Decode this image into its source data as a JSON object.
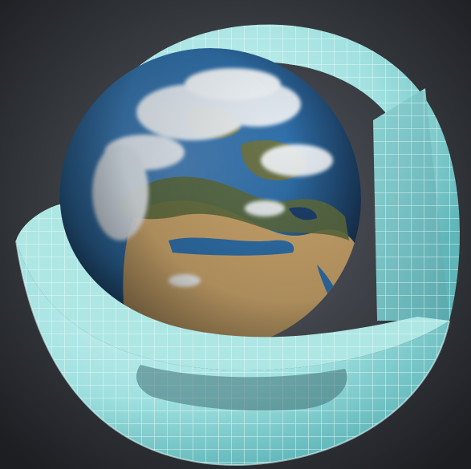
{
  "scene": {
    "subject": "earth-atmosphere-grid-cutaway",
    "colors": {
      "background_center": "#5a5f66",
      "background_edge": "#1c1e22",
      "grid_shell": "#9fe0df",
      "grid_shell_dark": "#5fb5b8",
      "grid_line": "#e8fbfb",
      "ocean": "#2f6fa8",
      "ocean_deep": "#1c3f6b",
      "land_green": "#5d6b3f",
      "land_desert": "#c9a46b",
      "cloud": "#f2f5f8"
    },
    "icons": [
      "globe-icon",
      "atmosphere-grid-icon"
    ]
  }
}
